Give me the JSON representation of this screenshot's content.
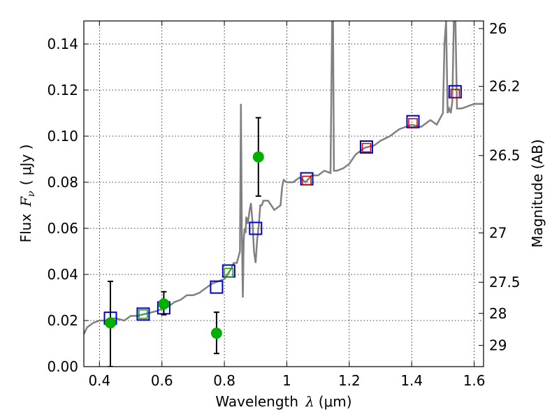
{
  "chart_data": {
    "type": "scatter",
    "xlabel": {
      "prefix": "Wavelength",
      "symbol": "λ",
      "unit": "(μm)"
    },
    "ylabel": {
      "prefix": "Flux",
      "symbol": "F",
      "sub": "ν",
      "unit": "( μJy )"
    },
    "y2label": "Magnitude (AB)",
    "xlim": [
      0.35,
      1.63
    ],
    "ylim": [
      0.0,
      0.15
    ],
    "grid": true,
    "x_ticks": [
      0.4,
      0.6,
      0.8,
      1.0,
      1.2,
      1.4,
      1.6
    ],
    "x_tick_labels": [
      "0.4",
      "0.6",
      "0.8",
      "1",
      "1.2",
      "1.4",
      "1.6"
    ],
    "y_ticks": [
      0.0,
      0.02,
      0.04,
      0.06,
      0.08,
      0.1,
      0.12,
      0.14
    ],
    "y_tick_labels": [
      "0.00",
      "0.02",
      "0.04",
      "0.06",
      "0.08",
      "0.10",
      "0.12",
      "0.14"
    ],
    "y2_ticks": [
      {
        "label": "26",
        "flux": 0.1467
      },
      {
        "label": "26.2",
        "flux": 0.1216
      },
      {
        "label": "26.5",
        "flux": 0.0916
      },
      {
        "label": "27",
        "flux": 0.058
      },
      {
        "label": "27.5",
        "flux": 0.0366
      },
      {
        "label": "28",
        "flux": 0.0231
      },
      {
        "label": "29",
        "flux": 0.0092
      }
    ],
    "colors": {
      "model": "#808080",
      "photometry": "#00b000",
      "errorbar": "#000000",
      "blue_square": "#0000cc",
      "red_square": "#cc0000",
      "green_square": "#00aa00"
    },
    "model_spectrum": {
      "x": [
        0.35,
        0.36,
        0.37,
        0.38,
        0.4,
        0.42,
        0.45,
        0.48,
        0.5,
        0.52,
        0.55,
        0.58,
        0.6,
        0.62,
        0.64,
        0.66,
        0.68,
        0.7,
        0.72,
        0.74,
        0.76,
        0.78,
        0.8,
        0.81,
        0.82,
        0.83,
        0.84,
        0.85,
        0.853,
        0.856,
        0.859,
        0.862,
        0.865,
        0.868,
        0.87,
        0.875,
        0.88,
        0.885,
        0.89,
        0.895,
        0.9,
        0.905,
        0.91,
        0.915,
        0.92,
        0.925,
        0.93,
        0.935,
        0.94,
        0.96,
        0.98,
        0.985,
        0.99,
        1.0,
        1.02,
        1.04,
        1.06,
        1.08,
        1.1,
        1.12,
        1.14,
        1.145,
        1.148,
        1.151,
        1.155,
        1.16,
        1.18,
        1.2,
        1.22,
        1.25,
        1.28,
        1.3,
        1.33,
        1.36,
        1.4,
        1.43,
        1.46,
        1.48,
        1.5,
        1.505,
        1.51,
        1.515,
        1.52,
        1.525,
        1.53,
        1.535,
        1.54,
        1.545,
        1.55,
        1.56,
        1.58,
        1.6,
        1.63
      ],
      "y": [
        0.014,
        0.017,
        0.018,
        0.019,
        0.02,
        0.02,
        0.021,
        0.02,
        0.022,
        0.022,
        0.023,
        0.024,
        0.025,
        0.026,
        0.028,
        0.029,
        0.031,
        0.031,
        0.032,
        0.034,
        0.036,
        0.037,
        0.038,
        0.04,
        0.042,
        0.045,
        0.045,
        0.05,
        0.114,
        0.06,
        0.03,
        0.055,
        0.06,
        0.058,
        0.065,
        0.062,
        0.067,
        0.071,
        0.063,
        0.05,
        0.045,
        0.055,
        0.061,
        0.07,
        0.07,
        0.072,
        0.072,
        0.072,
        0.072,
        0.068,
        0.07,
        0.078,
        0.081,
        0.08,
        0.08,
        0.082,
        0.08,
        0.083,
        0.083,
        0.085,
        0.084,
        0.15,
        0.15,
        0.085,
        0.085,
        0.085,
        0.086,
        0.088,
        0.092,
        0.095,
        0.096,
        0.098,
        0.1,
        0.103,
        0.105,
        0.104,
        0.107,
        0.105,
        0.11,
        0.14,
        0.15,
        0.11,
        0.112,
        0.11,
        0.115,
        0.15,
        0.15,
        0.112,
        0.112,
        0.112,
        0.113,
        0.114,
        0.114
      ]
    },
    "photometry": [
      {
        "x": 0.435,
        "y": 0.019,
        "lo": 0.0,
        "hi": 0.037
      },
      {
        "x": 0.606,
        "y": 0.0272,
        "lo": 0.0225,
        "hi": 0.0325
      },
      {
        "x": 0.775,
        "y": 0.0145,
        "lo": 0.0057,
        "hi": 0.0236
      },
      {
        "x": 0.909,
        "y": 0.091,
        "lo": 0.074,
        "hi": 0.108
      }
    ],
    "model_fluxes_blue": [
      {
        "x": 0.435,
        "y": 0.021
      },
      {
        "x": 0.54,
        "y": 0.0228
      },
      {
        "x": 0.606,
        "y": 0.0255
      },
      {
        "x": 0.775,
        "y": 0.0345
      },
      {
        "x": 0.814,
        "y": 0.0415
      },
      {
        "x": 0.9,
        "y": 0.06
      },
      {
        "x": 1.064,
        "y": 0.0815
      },
      {
        "x": 1.255,
        "y": 0.0953
      },
      {
        "x": 1.404,
        "y": 0.1063
      },
      {
        "x": 1.539,
        "y": 0.1193
      }
    ],
    "model_fluxes_red": [
      {
        "x": 1.064,
        "y": 0.0808
      },
      {
        "x": 1.255,
        "y": 0.095
      },
      {
        "x": 1.404,
        "y": 0.1058
      },
      {
        "x": 1.539,
        "y": 0.1185
      }
    ],
    "model_fluxes_green": [
      {
        "x": 0.54,
        "y": 0.0228
      },
      {
        "x": 0.814,
        "y": 0.0408
      }
    ]
  }
}
